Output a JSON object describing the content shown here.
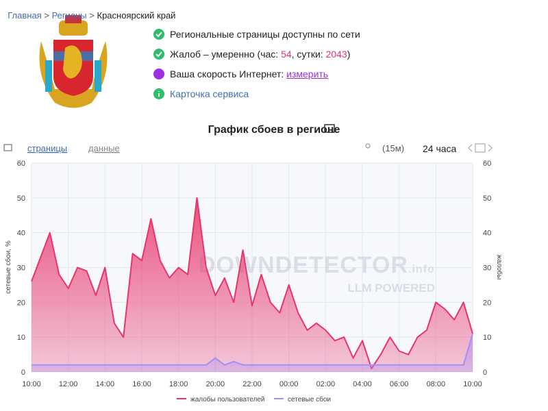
{
  "breadcrumb": [
    "Главная",
    "Регионы",
    "Красноярский край"
  ],
  "status": {
    "network": "Региональные страницы доступны по сети",
    "complaints_prefix": "Жалоб – умеренно (час: ",
    "complaints_hour": 54,
    "complaints_mid": ", сутки: ",
    "complaints_day": 2043,
    "complaints_suffix": ")",
    "speed_label": "Ваша скорость Интернет: ",
    "speed_link": "измерить",
    "card": "Карточка сервиса"
  },
  "tabs": [
    "страницы",
    "данные"
  ],
  "interval": "(15м)",
  "period": "24 часа",
  "chart_data": {
    "type": "line",
    "title": "График сбоев в регионе",
    "categories": [
      "10:00",
      null,
      null,
      null,
      "12:00",
      null,
      null,
      null,
      "14:00",
      null,
      null,
      null,
      "16:00",
      null,
      null,
      null,
      "18:00",
      null,
      null,
      null,
      "20:00",
      null,
      null,
      null,
      "22:00",
      null,
      null,
      null,
      "00:00",
      null,
      null,
      null,
      "02:00",
      null,
      null,
      null,
      "04:00",
      null,
      null,
      null,
      "06:00",
      null,
      null,
      null,
      "08:00",
      null,
      null,
      null,
      "10:00"
    ],
    "series": [
      {
        "name": "жалобы пользователей",
        "color": "#e8336b",
        "axis": "y2",
        "values": [
          26,
          33,
          40,
          28,
          24,
          30,
          29,
          22,
          30,
          14,
          10,
          34,
          32,
          44,
          32,
          27,
          30,
          28,
          50,
          30,
          22,
          27,
          20,
          35,
          19,
          28,
          20,
          17,
          25,
          17,
          12,
          14,
          12,
          9,
          10,
          4,
          9,
          1,
          5,
          10,
          6,
          5,
          10,
          12,
          20,
          18,
          15,
          20,
          11
        ]
      },
      {
        "name": "сетевые сбои",
        "color": "#a78bfa",
        "values": [
          2,
          2,
          2,
          2,
          2,
          2,
          2,
          2,
          2,
          2,
          2,
          2,
          2,
          2,
          2,
          2,
          2,
          2,
          2,
          2,
          4,
          2,
          3,
          2,
          2,
          2,
          2,
          2,
          2,
          2,
          2,
          2,
          2,
          2,
          2,
          2,
          2,
          2,
          2,
          2,
          2,
          2,
          2,
          2,
          2,
          2,
          2,
          2,
          11
        ]
      }
    ],
    "ylabel": "сетевые сбои, %",
    "y2label": "жалобы",
    "ylim": [
      0,
      60
    ],
    "yticks": [
      0,
      10,
      20,
      30,
      40,
      50,
      60
    ],
    "y2lim": [
      0,
      60
    ],
    "y2ticks": [
      0,
      10,
      20,
      30,
      40,
      50,
      60
    ],
    "grid": true,
    "legend": "bottom",
    "watermark": "DOWNDETECTOR",
    "watermark_suffix": ".info",
    "watermark_sub": "LLM POWERED"
  }
}
